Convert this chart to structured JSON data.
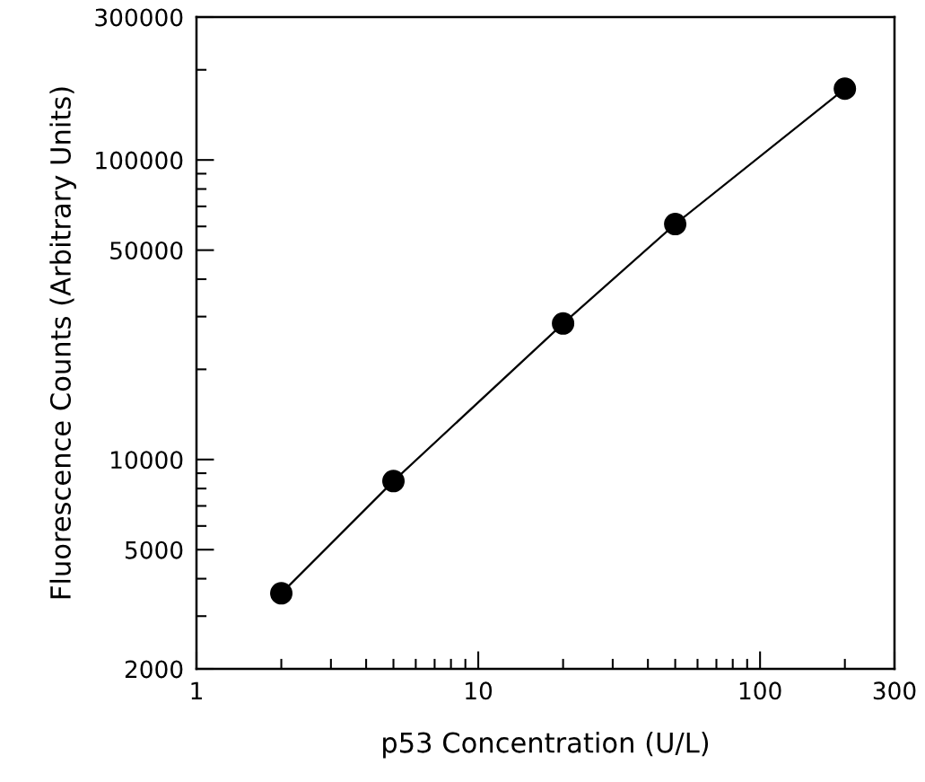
{
  "chart_data": {
    "type": "line",
    "xlabel": "p53 Concentration (U/L)",
    "ylabel": "Fluorescence Counts (Arbitrary Units)",
    "x": [
      2,
      5,
      20,
      50,
      200
    ],
    "series": [
      {
        "color": "#000000",
        "values": [
          3575,
          8470,
          28450,
          61100,
          173000
        ]
      }
    ],
    "log": "xy",
    "marker": "circle",
    "line_style": "solid",
    "grid": false,
    "legend": false,
    "xlim": [
      1,
      300
    ],
    "xticks": [
      1,
      {
        "value": 2,
        "label": null
      },
      {
        "value": 3,
        "label": null
      },
      {
        "value": 4,
        "label": null
      },
      {
        "value": 5,
        "label": null
      },
      {
        "value": 6,
        "label": null
      },
      {
        "value": 7,
        "label": null
      },
      {
        "value": 8,
        "label": null
      },
      {
        "value": 9,
        "label": null
      },
      10,
      {
        "value": 20,
        "label": null
      },
      {
        "value": 30,
        "label": null
      },
      {
        "value": 40,
        "label": null
      },
      {
        "value": 50,
        "label": null
      },
      {
        "value": 60,
        "label": null
      },
      {
        "value": 70,
        "label": null
      },
      {
        "value": 80,
        "label": null
      },
      {
        "value": 90,
        "label": null
      },
      100,
      {
        "value": 200,
        "label": null
      },
      300
    ],
    "ylim": [
      2000,
      300000
    ],
    "yticks": [
      2000,
      {
        "value": 3000,
        "label": null
      },
      {
        "value": 4000,
        "label": null
      },
      5000,
      {
        "value": 6000,
        "label": null
      },
      {
        "value": 7000,
        "label": null
      },
      {
        "value": 8000,
        "label": null
      },
      {
        "value": 9000,
        "label": null
      },
      10000,
      {
        "value": 20000,
        "label": null
      },
      {
        "value": 30000,
        "label": null
      },
      {
        "value": 40000,
        "label": null
      },
      50000,
      {
        "value": 60000,
        "label": null
      },
      {
        "value": 70000,
        "label": null
      },
      {
        "value": 80000,
        "label": null
      },
      {
        "value": 90000,
        "label": null
      },
      100000,
      {
        "value": 200000,
        "label": null
      },
      300000
    ]
  }
}
